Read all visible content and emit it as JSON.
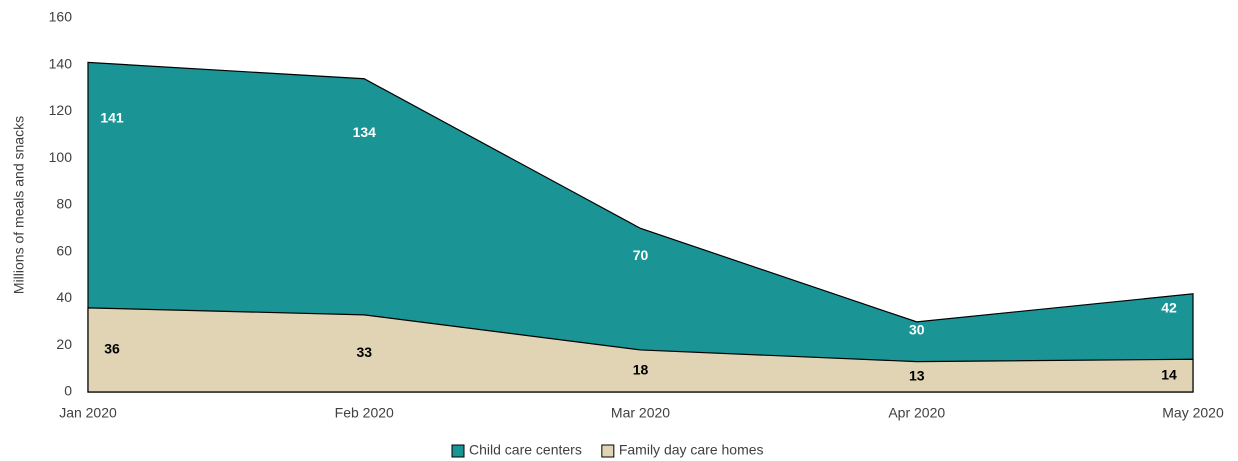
{
  "chart_data": {
    "type": "area",
    "y_label": "Millions of meals and snacks",
    "categories": [
      "Jan 2020",
      "Feb 2020",
      "Mar 2020",
      "Apr 2020",
      "May 2020"
    ],
    "series": [
      {
        "name": "Child care centers",
        "color": "#1a9494",
        "values": [
          141,
          134,
          70,
          30,
          42
        ]
      },
      {
        "name": "Family day care homes",
        "color": "#e0d4b4",
        "values": [
          36,
          33,
          18,
          13,
          14
        ]
      }
    ],
    "ylim": [
      0,
      160
    ],
    "yticks": [
      0,
      20,
      40,
      60,
      80,
      100,
      120,
      140,
      160
    ],
    "legend": "bottom"
  }
}
